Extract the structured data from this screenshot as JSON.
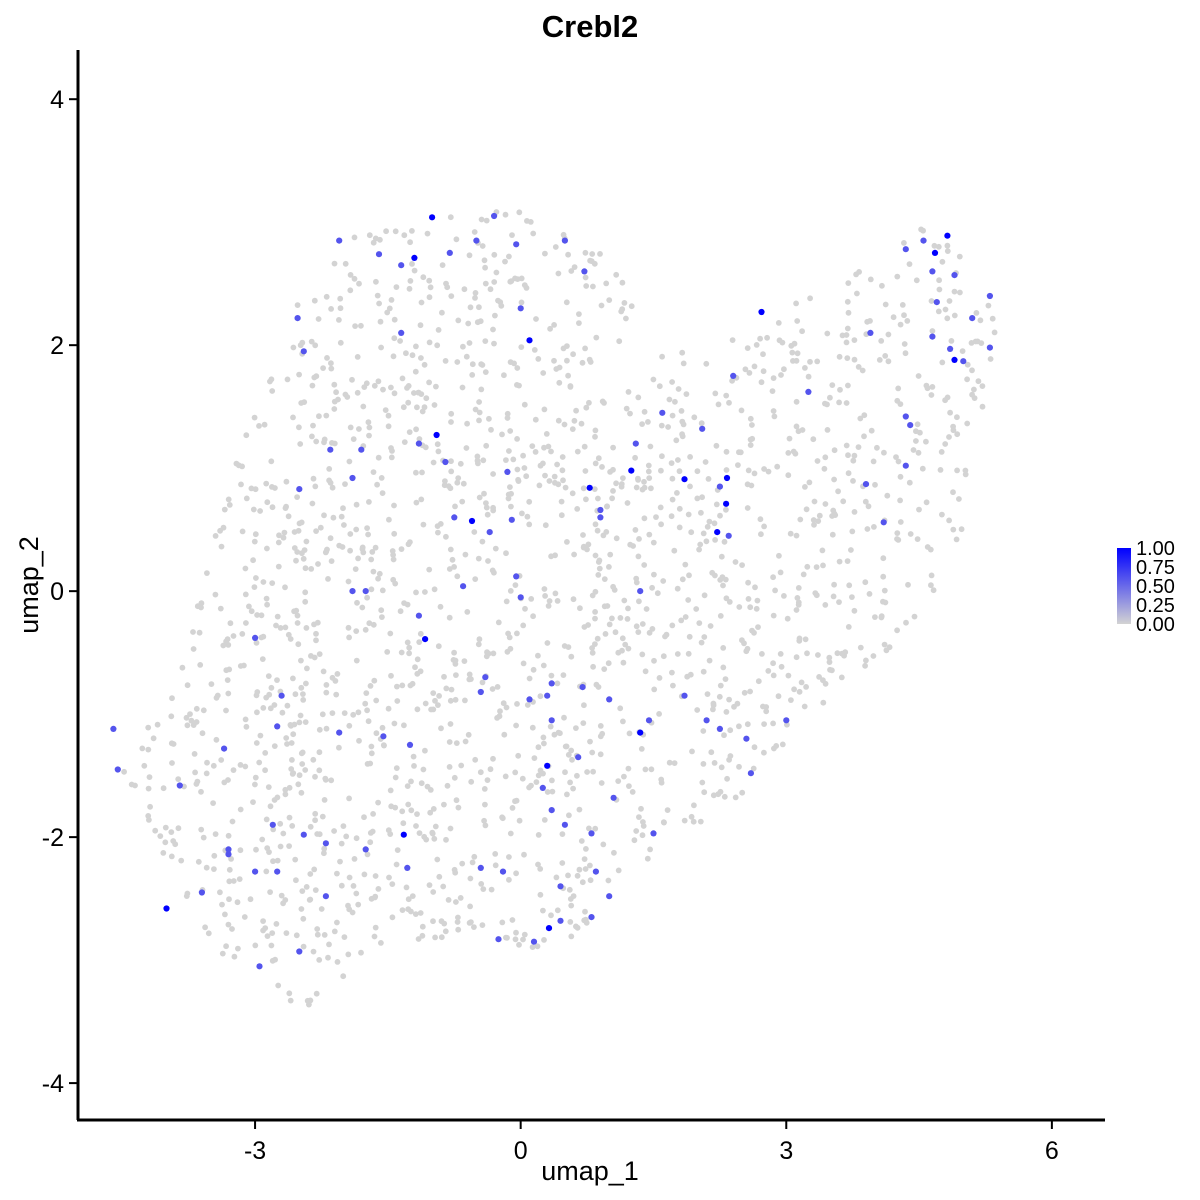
{
  "chart_data": {
    "type": "scatter",
    "title": "Crebl2",
    "xlabel": "umap_1",
    "ylabel": "umap_2",
    "xlim": [
      -5.0,
      6.6
    ],
    "ylim": [
      -4.3,
      4.4
    ],
    "x_ticks": [
      -3,
      0,
      3,
      6
    ],
    "y_ticks": [
      -4,
      -2,
      0,
      2,
      4
    ],
    "grid": false,
    "legend": {
      "placement": "right",
      "labels": [
        "1.00",
        "0.75",
        "0.50",
        "0.25",
        "0.00"
      ],
      "values": [
        1.0,
        0.75,
        0.5,
        0.25,
        0.0
      ],
      "low_color": "#d3d3d3",
      "high_color": "#0000ff"
    },
    "point_color_low": "#d3d3d3",
    "point_color_high": "#0000ff",
    "background_point_count": 1900,
    "region_outline": [
      [
        -4.6,
        -1.3
      ],
      [
        -4.3,
        -1.75
      ],
      [
        -4.0,
        -2.25
      ],
      [
        -3.6,
        -2.8
      ],
      [
        -3.2,
        -3.05
      ],
      [
        -2.7,
        -3.35
      ],
      [
        -2.3,
        -3.45
      ],
      [
        -2.0,
        -3.2
      ],
      [
        -1.5,
        -2.95
      ],
      [
        -0.8,
        -2.85
      ],
      [
        -0.2,
        -2.9
      ],
      [
        0.5,
        -2.9
      ],
      [
        1.0,
        -2.5
      ],
      [
        1.6,
        -2.1
      ],
      [
        2.2,
        -1.8
      ],
      [
        2.7,
        -1.55
      ],
      [
        3.2,
        -1.05
      ],
      [
        3.9,
        -0.75
      ],
      [
        4.5,
        -0.2
      ],
      [
        4.9,
        0.3
      ],
      [
        5.15,
        0.9
      ],
      [
        5.3,
        1.6
      ],
      [
        5.4,
        2.1
      ],
      [
        5.3,
        2.45
      ],
      [
        4.95,
        2.75
      ],
      [
        4.5,
        3.05
      ],
      [
        4.2,
        2.7
      ],
      [
        3.6,
        2.55
      ],
      [
        3.1,
        2.35
      ],
      [
        2.6,
        2.1
      ],
      [
        2.0,
        1.95
      ],
      [
        1.55,
        2.1
      ],
      [
        1.2,
        2.55
      ],
      [
        0.7,
        2.9
      ],
      [
        0.1,
        3.1
      ],
      [
        -0.6,
        3.1
      ],
      [
        -1.3,
        3.0
      ],
      [
        -1.9,
        2.9
      ],
      [
        -2.3,
        2.6
      ],
      [
        -2.65,
        2.2
      ],
      [
        -2.95,
        1.8
      ],
      [
        -3.15,
        1.3
      ],
      [
        -3.3,
        0.8
      ],
      [
        -3.55,
        0.2
      ],
      [
        -3.75,
        -0.4
      ],
      [
        -4.05,
        -0.95
      ],
      [
        -4.45,
        -1.2
      ]
    ],
    "expressing_points": [
      {
        "x": -1.0,
        "y": 3.04,
        "v": 1.0
      },
      {
        "x": -1.2,
        "y": 2.71,
        "v": 1.0
      },
      {
        "x": 0.1,
        "y": 2.04,
        "v": 1.0
      },
      {
        "x": -0.95,
        "y": 1.27,
        "v": 1.0
      },
      {
        "x": -0.55,
        "y": 0.57,
        "v": 1.0
      },
      {
        "x": 1.25,
        "y": 0.98,
        "v": 1.0
      },
      {
        "x": 0.78,
        "y": 0.84,
        "v": 1.0
      },
      {
        "x": 1.85,
        "y": 0.91,
        "v": 1.0
      },
      {
        "x": 2.33,
        "y": 0.92,
        "v": 1.0
      },
      {
        "x": 2.32,
        "y": 0.71,
        "v": 1.0
      },
      {
        "x": 2.22,
        "y": 0.48,
        "v": 1.0
      },
      {
        "x": 2.72,
        "y": 2.27,
        "v": 1.0
      },
      {
        "x": 4.82,
        "y": 2.89,
        "v": 1.0
      },
      {
        "x": 4.68,
        "y": 2.75,
        "v": 1.0
      },
      {
        "x": 4.9,
        "y": 1.88,
        "v": 1.0
      },
      {
        "x": -1.08,
        "y": -0.39,
        "v": 1.0
      },
      {
        "x": 1.35,
        "y": -1.15,
        "v": 1.0
      },
      {
        "x": 0.3,
        "y": -1.42,
        "v": 1.0
      },
      {
        "x": -1.32,
        "y": -1.98,
        "v": 1.0
      },
      {
        "x": -4.0,
        "y": -2.58,
        "v": 1.0
      },
      {
        "x": 0.32,
        "y": -2.74,
        "v": 1.0
      },
      {
        "x": -2.52,
        "y": 2.22,
        "v": 0.6
      },
      {
        "x": -2.45,
        "y": 1.95,
        "v": 0.6
      },
      {
        "x": -2.05,
        "y": 2.85,
        "v": 0.6
      },
      {
        "x": -1.6,
        "y": 2.74,
        "v": 0.6
      },
      {
        "x": -1.35,
        "y": 2.65,
        "v": 0.6
      },
      {
        "x": -0.8,
        "y": 2.75,
        "v": 0.6
      },
      {
        "x": -0.5,
        "y": 2.85,
        "v": 0.6
      },
      {
        "x": -0.3,
        "y": 3.05,
        "v": 0.6
      },
      {
        "x": -0.05,
        "y": 2.82,
        "v": 0.6
      },
      {
        "x": 0.5,
        "y": 2.85,
        "v": 0.6
      },
      {
        "x": 0.72,
        "y": 2.6,
        "v": 0.6
      },
      {
        "x": 0.0,
        "y": 2.3,
        "v": 0.6
      },
      {
        "x": -1.35,
        "y": 2.1,
        "v": 0.6
      },
      {
        "x": -2.15,
        "y": 1.15,
        "v": 0.6
      },
      {
        "x": -1.8,
        "y": 1.15,
        "v": 0.6
      },
      {
        "x": -1.9,
        "y": 0.92,
        "v": 0.6
      },
      {
        "x": -1.15,
        "y": 1.2,
        "v": 0.6
      },
      {
        "x": -0.85,
        "y": 1.05,
        "v": 0.6
      },
      {
        "x": -0.15,
        "y": 0.97,
        "v": 0.6
      },
      {
        "x": -0.75,
        "y": 0.6,
        "v": 0.6
      },
      {
        "x": -0.35,
        "y": 0.48,
        "v": 0.6
      },
      {
        "x": -0.1,
        "y": 0.58,
        "v": 0.6
      },
      {
        "x": 0.9,
        "y": 0.66,
        "v": 0.6
      },
      {
        "x": 0.9,
        "y": 0.6,
        "v": 0.6
      },
      {
        "x": 1.3,
        "y": 1.2,
        "v": 0.6
      },
      {
        "x": 1.6,
        "y": 1.45,
        "v": 0.6
      },
      {
        "x": 2.05,
        "y": 1.32,
        "v": 0.6
      },
      {
        "x": 2.4,
        "y": 1.75,
        "v": 0.6
      },
      {
        "x": 2.25,
        "y": 0.85,
        "v": 0.6
      },
      {
        "x": 2.35,
        "y": 0.45,
        "v": 0.6
      },
      {
        "x": 3.25,
        "y": 1.62,
        "v": 0.6
      },
      {
        "x": 3.95,
        "y": 2.1,
        "v": 0.6
      },
      {
        "x": 4.35,
        "y": 2.78,
        "v": 0.6
      },
      {
        "x": 4.55,
        "y": 2.85,
        "v": 0.6
      },
      {
        "x": 4.65,
        "y": 2.6,
        "v": 0.6
      },
      {
        "x": 4.7,
        "y": 2.35,
        "v": 0.6
      },
      {
        "x": 4.65,
        "y": 2.07,
        "v": 0.6
      },
      {
        "x": 4.85,
        "y": 1.97,
        "v": 0.6
      },
      {
        "x": 5.0,
        "y": 1.87,
        "v": 0.6
      },
      {
        "x": 5.3,
        "y": 1.98,
        "v": 0.6
      },
      {
        "x": 5.1,
        "y": 2.22,
        "v": 0.6
      },
      {
        "x": 5.3,
        "y": 2.4,
        "v": 0.6
      },
      {
        "x": 4.9,
        "y": 2.57,
        "v": 0.6
      },
      {
        "x": 4.35,
        "y": 1.42,
        "v": 0.6
      },
      {
        "x": 4.4,
        "y": 1.35,
        "v": 0.6
      },
      {
        "x": 4.35,
        "y": 1.02,
        "v": 0.6
      },
      {
        "x": 3.9,
        "y": 0.87,
        "v": 0.6
      },
      {
        "x": 4.1,
        "y": 0.56,
        "v": 0.6
      },
      {
        "x": -3.0,
        "y": -0.38,
        "v": 0.6
      },
      {
        "x": -2.5,
        "y": 0.83,
        "v": 0.6
      },
      {
        "x": -1.9,
        "y": 0.0,
        "v": 0.6
      },
      {
        "x": -1.75,
        "y": 0.0,
        "v": 0.6
      },
      {
        "x": -1.15,
        "y": -0.2,
        "v": 0.6
      },
      {
        "x": -0.65,
        "y": 0.04,
        "v": 0.6
      },
      {
        "x": -0.05,
        "y": 0.12,
        "v": 0.6
      },
      {
        "x": 0.0,
        "y": -0.05,
        "v": 0.6
      },
      {
        "x": 1.35,
        "y": 0.0,
        "v": 0.6
      },
      {
        "x": 0.35,
        "y": -0.75,
        "v": 0.6
      },
      {
        "x": 0.3,
        "y": -0.85,
        "v": 0.6
      },
      {
        "x": 0.1,
        "y": -0.88,
        "v": 0.6
      },
      {
        "x": -0.45,
        "y": -0.82,
        "v": 0.6
      },
      {
        "x": -0.4,
        "y": -0.7,
        "v": 0.6
      },
      {
        "x": 0.35,
        "y": -1.05,
        "v": 0.6
      },
      {
        "x": 0.7,
        "y": -0.78,
        "v": 0.6
      },
      {
        "x": 1.0,
        "y": -0.88,
        "v": 0.6
      },
      {
        "x": 1.45,
        "y": -1.05,
        "v": 0.6
      },
      {
        "x": 1.85,
        "y": -0.85,
        "v": 0.6
      },
      {
        "x": 2.1,
        "y": -1.05,
        "v": 0.6
      },
      {
        "x": 2.25,
        "y": -1.12,
        "v": 0.6
      },
      {
        "x": 2.55,
        "y": -1.2,
        "v": 0.6
      },
      {
        "x": 2.6,
        "y": -1.48,
        "v": 0.6
      },
      {
        "x": 3.0,
        "y": -1.05,
        "v": 0.6
      },
      {
        "x": 0.65,
        "y": -1.35,
        "v": 0.6
      },
      {
        "x": 0.25,
        "y": -1.6,
        "v": 0.6
      },
      {
        "x": 0.35,
        "y": -1.78,
        "v": 0.6
      },
      {
        "x": 0.5,
        "y": -1.9,
        "v": 0.6
      },
      {
        "x": 0.8,
        "y": -1.97,
        "v": 0.6
      },
      {
        "x": 1.05,
        "y": -1.68,
        "v": 0.6
      },
      {
        "x": 1.5,
        "y": -1.97,
        "v": 0.6
      },
      {
        "x": 0.85,
        "y": -2.28,
        "v": 0.6
      },
      {
        "x": 0.45,
        "y": -2.4,
        "v": 0.6
      },
      {
        "x": 1.0,
        "y": -2.48,
        "v": 0.6
      },
      {
        "x": 0.8,
        "y": -2.65,
        "v": 0.6
      },
      {
        "x": 0.45,
        "y": -2.68,
        "v": 0.6
      },
      {
        "x": 0.15,
        "y": -2.85,
        "v": 0.6
      },
      {
        "x": -0.25,
        "y": -2.83,
        "v": 0.6
      },
      {
        "x": -0.2,
        "y": -2.28,
        "v": 0.6
      },
      {
        "x": -0.45,
        "y": -2.25,
        "v": 0.6
      },
      {
        "x": -1.25,
        "y": -1.25,
        "v": 0.6
      },
      {
        "x": -1.55,
        "y": -1.18,
        "v": 0.6
      },
      {
        "x": -2.05,
        "y": -1.15,
        "v": 0.6
      },
      {
        "x": -2.7,
        "y": -0.85,
        "v": 0.6
      },
      {
        "x": -2.75,
        "y": -1.1,
        "v": 0.6
      },
      {
        "x": -3.35,
        "y": -1.28,
        "v": 0.6
      },
      {
        "x": -3.85,
        "y": -1.58,
        "v": 0.6
      },
      {
        "x": -4.6,
        "y": -1.12,
        "v": 0.6
      },
      {
        "x": -4.55,
        "y": -1.45,
        "v": 0.6
      },
      {
        "x": -3.3,
        "y": -2.1,
        "v": 0.6
      },
      {
        "x": -3.3,
        "y": -2.14,
        "v": 0.6
      },
      {
        "x": -2.8,
        "y": -1.9,
        "v": 0.6
      },
      {
        "x": -2.45,
        "y": -1.98,
        "v": 0.6
      },
      {
        "x": -2.2,
        "y": -2.05,
        "v": 0.6
      },
      {
        "x": -1.75,
        "y": -2.1,
        "v": 0.6
      },
      {
        "x": -1.28,
        "y": -2.25,
        "v": 0.6
      },
      {
        "x": -3.0,
        "y": -2.28,
        "v": 0.6
      },
      {
        "x": -2.75,
        "y": -2.28,
        "v": 0.6
      },
      {
        "x": -3.6,
        "y": -2.45,
        "v": 0.6
      },
      {
        "x": -2.2,
        "y": -2.48,
        "v": 0.6
      },
      {
        "x": -2.5,
        "y": -2.93,
        "v": 0.6
      },
      {
        "x": -2.95,
        "y": -3.05,
        "v": 0.6
      }
    ]
  }
}
